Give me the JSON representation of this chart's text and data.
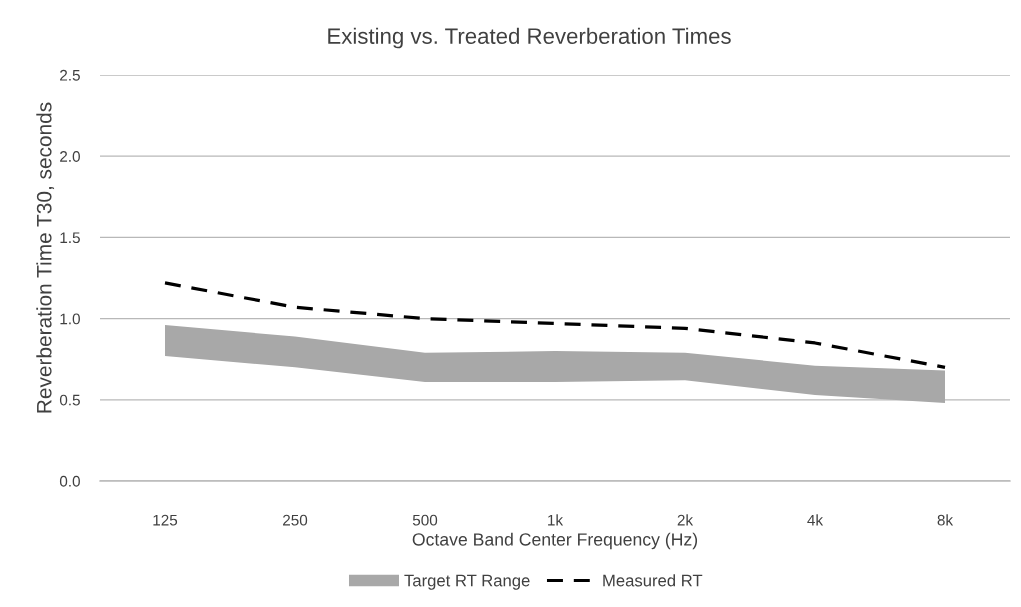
{
  "chart_data": {
    "type": "line",
    "title": "Existing vs. Treated Reverberation Times",
    "xlabel": "Octave Band Center Frequency (Hz)",
    "ylabel": "Reverberation Time T30, seconds",
    "categories": [
      "125",
      "250",
      "500",
      "1k",
      "2k",
      "4k",
      "8k"
    ],
    "series": [
      {
        "name": "Target RT Range",
        "color": "#a8a8a8",
        "values": [
          null,
          null,
          null,
          null,
          null,
          null,
          null
        ],
        "lower": [
          0.77,
          0.7,
          0.61,
          0.61,
          0.62,
          0.53,
          0.48
        ],
        "upper": [
          0.96,
          0.89,
          0.79,
          0.8,
          0.79,
          0.71,
          0.68
        ]
      },
      {
        "name": "Measured RT",
        "color": "#000000",
        "line_style": "dashed",
        "values": [
          1.22,
          1.07,
          1.0,
          0.97,
          0.94,
          0.85,
          0.7
        ]
      }
    ],
    "ylim": [
      0,
      2.5
    ],
    "yticks": [
      {
        "value": 0,
        "label": "0.0"
      },
      {
        "value": 0.5,
        "label": "0.5"
      },
      {
        "value": 1,
        "label": "1.0"
      },
      {
        "value": 1.5,
        "label": "1.5"
      },
      {
        "value": 2,
        "label": "2.0"
      },
      {
        "value": 2.5,
        "label": "2.5"
      }
    ],
    "grid": "y",
    "legend": "bottom"
  }
}
